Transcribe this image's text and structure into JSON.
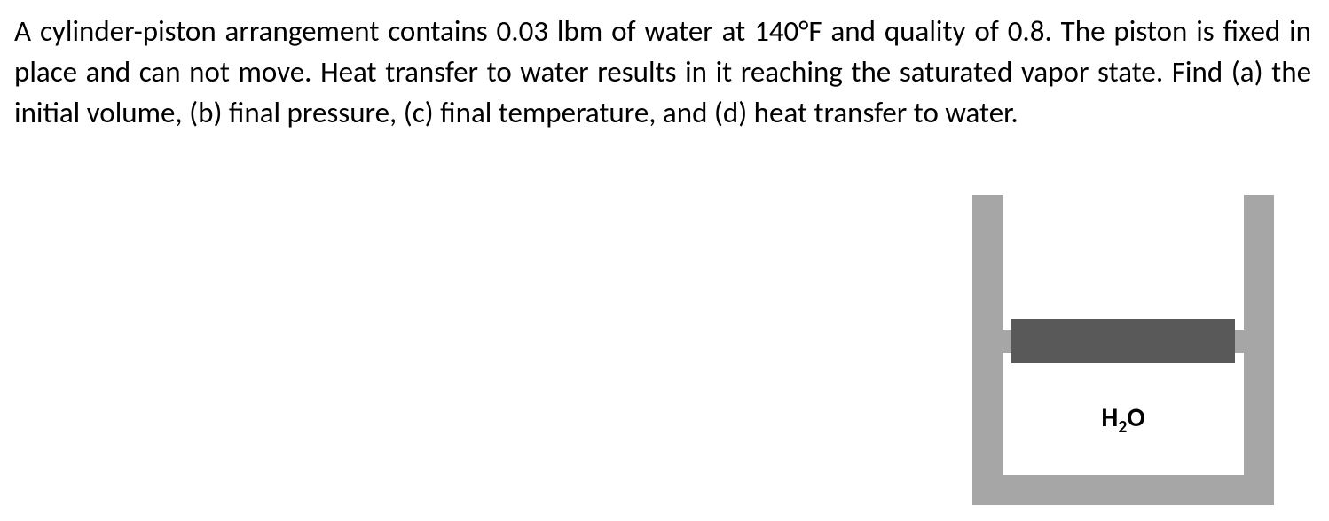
{
  "problem": {
    "text": "A cylinder-piston arrangement contains 0.03 lbm of water at 140°F and quality of 0.8. The piston is fixed in place and can not move. Heat transfer to water results in it reaching the saturated vapor state. Find (a) the initial volume, (b) final pressure, (c) final temperature, and (d) heat transfer to water.",
    "fontsize": 33,
    "color": "#000000",
    "line_height": 1.4
  },
  "diagram": {
    "label_h": "H",
    "label_sub": "2",
    "label_o": "O",
    "label_fontsize": 30,
    "label_color": "#000000",
    "colors": {
      "wall": "#a6a6a6",
      "piston": "#595959",
      "chamber_bg": "#ffffff",
      "page_bg": "#ffffff"
    },
    "geometry": {
      "wall_thickness": 34,
      "piston_height": 50,
      "piston_stub_height": 26,
      "outer_width": 340,
      "outer_height": 350
    }
  }
}
